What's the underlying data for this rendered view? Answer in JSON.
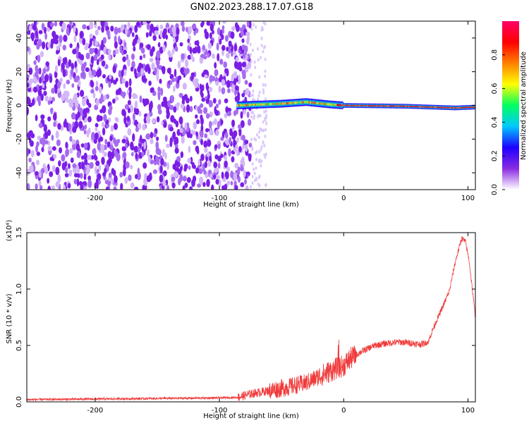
{
  "title": "GN02.2023.288.17.07.G18",
  "chart_data": [
    {
      "type": "heatmap",
      "title": "GN02.2023.288.17.07.G18",
      "xlabel": "Height of straight line (km)",
      "ylabel": "Frequency (Hz)",
      "xlim": [
        -255,
        106
      ],
      "ylim": [
        -50,
        50
      ],
      "x_ticks": [
        -200,
        -100,
        0,
        100
      ],
      "y_ticks": [
        -40,
        -20,
        0,
        20,
        40
      ],
      "colorbar": {
        "label": "Normalized spectral amplitude",
        "range": [
          0,
          1
        ],
        "ticks": [
          "0.0",
          "0.2",
          "0.4",
          "0.6",
          "0.8"
        ],
        "colors": [
          "#ffffff",
          "#8a2be2",
          "#1e00ff",
          "#00c8ff",
          "#00ff60",
          "#ffff00",
          "#ff8000",
          "#ff0000",
          "#ff0066"
        ]
      },
      "features": {
        "noise_region_x": [
          -255,
          -75
        ],
        "sparse_region_x": [
          -75,
          -62
        ],
        "signal_line": [
          {
            "x": -85,
            "y": 0.0
          },
          {
            "x": -50,
            "y": 1.0
          },
          {
            "x": -30,
            "y": 2.0
          },
          {
            "x": -10,
            "y": 0.5
          },
          {
            "x": 0,
            "y": 0.0
          },
          {
            "x": 50,
            "y": -0.5
          },
          {
            "x": 90,
            "y": -1.5
          },
          {
            "x": 106,
            "y": -1.0
          }
        ],
        "grid": false
      }
    },
    {
      "type": "line",
      "xlabel": "Height of straight line (km)",
      "ylabel": "SNR (10 * v/v)",
      "y_scale_label": "(x10⁴)",
      "xlim": [
        -255,
        106
      ],
      "ylim": [
        0,
        1.5
      ],
      "x_ticks": [
        -200,
        -100,
        0,
        100
      ],
      "y_ticks": [
        "0.0",
        "0.5",
        "1.0",
        "1.5"
      ],
      "color": "#f03a3a",
      "series": [
        {
          "x": [
            -255,
            -200,
            -150,
            -100,
            -85,
            -75,
            -60,
            -45,
            -30,
            -15,
            -5,
            0,
            5,
            15,
            25,
            35,
            45,
            55,
            62,
            68,
            72,
            78,
            85,
            90,
            95,
            98,
            101,
            104,
            106
          ],
          "values": [
            0.02,
            0.025,
            0.03,
            0.035,
            0.04,
            0.07,
            0.1,
            0.13,
            0.17,
            0.25,
            0.3,
            0.32,
            0.38,
            0.45,
            0.5,
            0.52,
            0.53,
            0.52,
            0.51,
            0.53,
            0.65,
            0.8,
            0.98,
            1.25,
            1.45,
            1.42,
            1.25,
            0.95,
            0.75
          ]
        }
      ],
      "grid": false
    }
  ]
}
